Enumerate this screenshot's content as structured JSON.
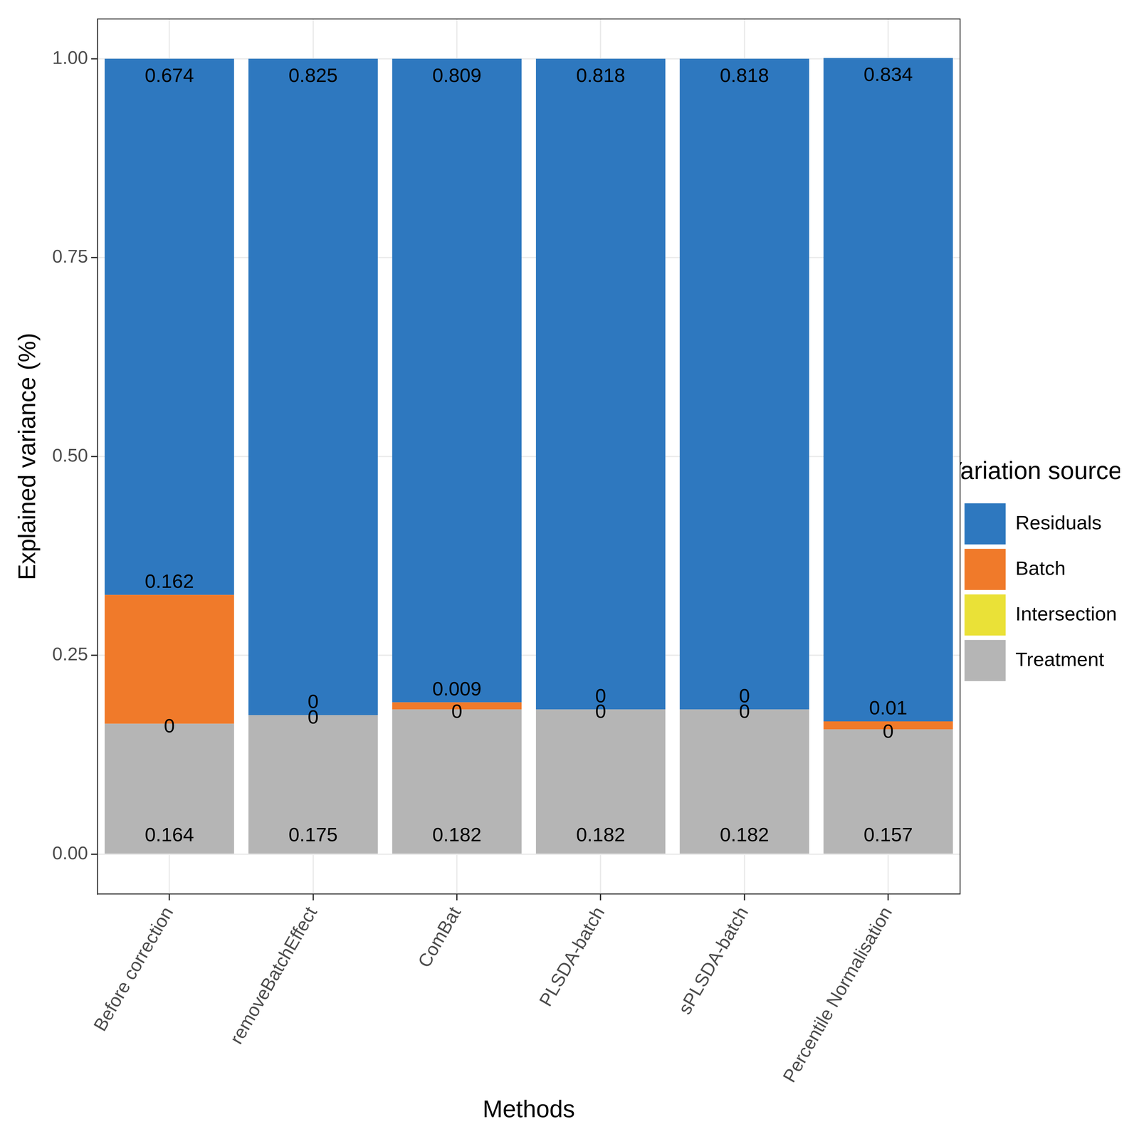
{
  "chart_data": {
    "type": "bar",
    "stacked": true,
    "data_labels": true,
    "grid": true,
    "legend": "right",
    "legend_title": "Variation sources",
    "x_label": "Methods",
    "y_label": "Explained variance (%)",
    "categories": [
      "Before correction",
      "removeBatchEffect",
      "ComBat",
      "PLSDA-batch",
      "sPLSDA-batch",
      "Percentile Normalisation"
    ],
    "ylim": [
      -0.05,
      1.05
    ],
    "yticks": [
      {
        "value": 0,
        "label": "0.00"
      },
      {
        "value": 0.25,
        "label": "0.25"
      },
      {
        "value": 0.5,
        "label": "0.50"
      },
      {
        "value": 0.75,
        "label": "0.75"
      },
      {
        "value": 1,
        "label": "1.00"
      }
    ],
    "series": [
      {
        "name": "Treatment",
        "color": "#B5B5B5",
        "values": [
          0.164,
          0.175,
          0.182,
          0.182,
          0.182,
          0.157
        ]
      },
      {
        "name": "Intersection",
        "color": "#EAE137",
        "values": [
          0,
          0,
          0,
          0,
          0,
          0
        ]
      },
      {
        "name": "Batch",
        "color": "#F07A2A",
        "values": [
          0.162,
          0,
          0.009,
          0,
          0,
          0.01
        ]
      },
      {
        "name": "Residuals",
        "color": "#2E78BF",
        "values": [
          0.674,
          0.825,
          0.809,
          0.818,
          0.818,
          0.834
        ]
      }
    ]
  }
}
